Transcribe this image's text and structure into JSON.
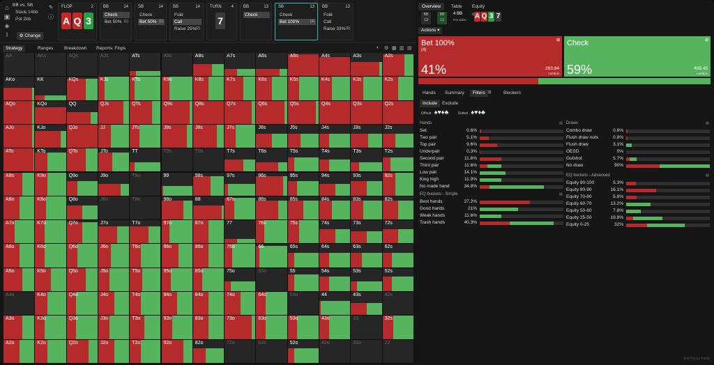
{
  "colors": {
    "bet": "#b52a2a",
    "check": "#56b45f",
    "empty": "#262626",
    "card_red": "#c62828",
    "card_green": "#2e9e44",
    "card_dark": "#3a3a3a"
  },
  "game": {
    "title": "BB vs. SB",
    "stack": "Stack 14bb",
    "pot": "Pot 2bb",
    "change": "Change"
  },
  "streets": [
    {
      "label": "FLOP",
      "num": "2"
    },
    {
      "label": "BB",
      "num": "14",
      "actions": [
        {
          "t": "Check",
          "c": "",
          "sel": true
        },
        {
          "t": "Bet 50%",
          "c": "(1)",
          "sel": false
        }
      ]
    },
    {
      "label": "SB",
      "num": "14",
      "actions": [
        {
          "t": "Check",
          "c": "",
          "sel": false
        },
        {
          "t": "Bet 50%",
          "c": "(1)",
          "sel": true
        }
      ]
    },
    {
      "label": "BB",
      "num": "14",
      "actions": [
        {
          "t": "Fold",
          "c": "",
          "sel": false
        },
        {
          "t": "Call",
          "c": "",
          "sel": true
        },
        {
          "t": "Raise 25%",
          "c": "(2)",
          "sel": false
        }
      ]
    },
    {
      "label": "TURN",
      "num": "4"
    },
    {
      "label": "BB",
      "num": "13",
      "actions": [
        {
          "t": "Check",
          "c": "",
          "sel": true
        }
      ]
    },
    {
      "label": "SB",
      "num": "13",
      "actions": [
        {
          "t": "Check",
          "c": "",
          "sel": false
        },
        {
          "t": "Bet 100%",
          "c": "(4)",
          "sel": true
        }
      ]
    },
    {
      "label": "BB",
      "num": "13",
      "actions": [
        {
          "t": "Fold",
          "c": "",
          "sel": false
        },
        {
          "t": "Call",
          "c": "",
          "sel": false
        },
        {
          "t": "Raise 33%",
          "c": "(6)",
          "sel": false
        }
      ]
    }
  ],
  "flop_cards": [
    "A",
    "Q",
    "3"
  ],
  "turn_card": "7",
  "right": {
    "tabs": [
      "Overview",
      "Table",
      "Equity chart"
    ],
    "mini": [
      {
        "t": "BB",
        "v": "13"
      },
      {
        "t": "BB",
        "v": "13"
      }
    ],
    "bb_info": "4 BB",
    "pot_odds": "Pot odds: -",
    "board": [
      "A",
      "Q",
      "3",
      "7"
    ],
    "actions_label": "Actions",
    "bet": {
      "label": "Bet 100%",
      "sub": "(4)",
      "pct": "41%",
      "combos": "283.84",
      "combos_label": "combos"
    },
    "check": {
      "label": "Check",
      "pct": "59%",
      "combos": "408.45",
      "combos_label": "combos"
    },
    "panel_tabs": [
      "Hands",
      "Summary",
      "Filters",
      "Blockers"
    ],
    "include": "Include",
    "exclude": "Exclude",
    "offsuit": "Offsuit",
    "suited": "Suited",
    "hands_title": "Hands",
    "hands": [
      [
        "Set",
        "0.6%",
        0.006,
        1
      ],
      [
        "Two pair",
        "5.1%",
        0.051,
        1
      ],
      [
        "Top pair",
        "9.6%",
        0.096,
        1
      ],
      [
        "Underpair",
        "0.3%",
        0.003,
        1
      ],
      [
        "Second pair",
        "11.6%",
        0.116,
        1
      ],
      [
        "Third pair",
        "11.6%",
        0.116,
        0.35
      ],
      [
        "Low pair",
        "14.1%",
        0.141,
        0
      ],
      [
        "King high",
        "11.9%",
        0.119,
        0
      ],
      [
        "No made hand",
        "34.8%",
        0.348,
        0.15
      ]
    ],
    "eq_title": "EQ buckets - Simple",
    "eq": [
      [
        "Best hands",
        "27.2%",
        0.272,
        1
      ],
      [
        "Good hands",
        "21%",
        0.21,
        0
      ],
      [
        "Weak hands",
        "11.6%",
        0.116,
        0
      ],
      [
        "Trash hands",
        "40.3%",
        0.403,
        0.4
      ]
    ],
    "draws_title": "Draws",
    "draws": [
      [
        "Combo draw",
        "0.6%",
        0.006,
        1
      ],
      [
        "Flush draw nuts",
        "0.8%",
        0.008,
        1
      ],
      [
        "Flush draw",
        "3.1%",
        0.031,
        0
      ],
      [
        "OESD",
        "0%",
        0,
        0
      ],
      [
        "Gutshot",
        "5.7%",
        0.057,
        0.3
      ],
      [
        "No draw",
        "90%",
        0.9,
        0.4
      ]
    ],
    "adv_title": "EQ buckets - Advanced",
    "adv": [
      [
        "Equity 90-100",
        "5.3%",
        0.053,
        1
      ],
      [
        "Equity 80-90",
        "16.1%",
        0.161,
        1
      ],
      [
        "Equity 70-80",
        "5.8%",
        0.058,
        1
      ],
      [
        "Equity 60-70",
        "13.2%",
        0.132,
        0
      ],
      [
        "Equity 50-60",
        "7.8%",
        0.078,
        0
      ],
      [
        "Equity 25-50",
        "19.8%",
        0.198,
        0.2
      ],
      [
        "Equity 0-25",
        "32%",
        0.32,
        0.35
      ]
    ],
    "exit": "Exit Focus mode"
  },
  "strip_tabs": [
    "Strategy",
    "Ranges",
    "Breakdown",
    "Reports: Flops"
  ],
  "grid_labels": [
    [
      "AA",
      "AKs",
      "AQs",
      "AJs",
      "ATs",
      "A9s",
      "A8s",
      "A7s",
      "A6s",
      "A5s",
      "A4s",
      "A3s",
      "A2s"
    ],
    [
      "AKo",
      "KK",
      "KQs",
      "KJs",
      "KTs",
      "K9s",
      "K8s",
      "K7s",
      "K6s",
      "K5s",
      "K4s",
      "K3s",
      "K2s"
    ],
    [
      "AQo",
      "KQo",
      "QQ",
      "QJs",
      "QTs",
      "Q9s",
      "Q8s",
      "Q7s",
      "Q6s",
      "Q5s",
      "Q4s",
      "Q3s",
      "Q2s"
    ],
    [
      "AJo",
      "KJo",
      "QJo",
      "JJ",
      "JTs",
      "J9s",
      "J8s",
      "J7s",
      "J6s",
      "J5s",
      "J4s",
      "J3s",
      "J2s"
    ],
    [
      "ATo",
      "KTo",
      "QTo",
      "JTo",
      "TT",
      "T9s",
      "T8s",
      "T7s",
      "T6s",
      "T5s",
      "T4s",
      "T3s",
      "T2s"
    ],
    [
      "A9o",
      "K9o",
      "Q9o",
      "J9o",
      "T9o",
      "99",
      "98s",
      "97s",
      "96s",
      "95s",
      "94s",
      "93s",
      "92s"
    ],
    [
      "A8o",
      "K8o",
      "Q8o",
      "J8o",
      "T8o",
      "98o",
      "88",
      "87s",
      "86s",
      "85s",
      "84s",
      "83s",
      "82s"
    ],
    [
      "A7o",
      "K7o",
      "Q7o",
      "J7o",
      "T7o",
      "97o",
      "87o",
      "77",
      "76s",
      "75s",
      "74s",
      "73s",
      "72s"
    ],
    [
      "A6o",
      "K6o",
      "Q6o",
      "J6o",
      "T6o",
      "96o",
      "86o",
      "76o",
      "66",
      "65s",
      "64s",
      "63s",
      "62s"
    ],
    [
      "A5o",
      "K5o",
      "Q5o",
      "J5o",
      "T5o",
      "95o",
      "85o",
      "75o",
      "65o",
      "55",
      "54s",
      "53s",
      "52s"
    ],
    [
      "A4o",
      "K4o",
      "Q4o",
      "J4o",
      "T4o",
      "94o",
      "84o",
      "74o",
      "64o",
      "54o",
      "44",
      "43s",
      "42s"
    ],
    [
      "A3o",
      "K3o",
      "Q3o",
      "J3o",
      "T3o",
      "93o",
      "83o",
      "73o",
      "63o",
      "53o",
      "43o",
      "33",
      "32s"
    ],
    [
      "A2o",
      "K2o",
      "Q2o",
      "J2o",
      "T2o",
      "92o",
      "82o",
      "72o",
      "62o",
      "52o",
      "42o",
      "32o",
      "22"
    ]
  ],
  "grid_weights": [
    [
      [
        0,
        0,
        0
      ],
      [
        0,
        0,
        0
      ],
      [
        0,
        0,
        0
      ],
      [
        0,
        0,
        0
      ],
      [
        0.2,
        0.8,
        0.2
      ],
      [
        0,
        0,
        0
      ],
      [
        0.6,
        0.4,
        0.5
      ],
      [
        0.4,
        0.6,
        0.3
      ],
      [
        0.75,
        0.25,
        0.3
      ],
      [
        1,
        0,
        0.9
      ],
      [
        1,
        0,
        0.8
      ],
      [
        0.9,
        0.1,
        0.6
      ],
      [
        0.7,
        0.3,
        0.9
      ]
    ],
    [
      [
        0.9,
        0.1,
        0.5
      ],
      [
        0.3,
        0.7,
        0.2
      ],
      [
        0.6,
        0.4,
        0.9
      ],
      [
        0.2,
        0.8,
        1
      ],
      [
        0.15,
        0.85,
        1
      ],
      [
        0.25,
        0.75,
        1
      ],
      [
        0.5,
        0.5,
        1
      ],
      [
        0.6,
        0.4,
        1
      ],
      [
        0.5,
        0.5,
        1
      ],
      [
        0.35,
        0.65,
        1
      ],
      [
        0.4,
        0.6,
        1
      ],
      [
        0.4,
        0.6,
        1
      ],
      [
        0.5,
        0.5,
        1
      ]
    ],
    [
      [
        0.9,
        0.1,
        1
      ],
      [
        1,
        0,
        0.7
      ],
      [
        0.75,
        0.25,
        0.5
      ],
      [
        0.8,
        0.2,
        1
      ],
      [
        0.7,
        0.3,
        1
      ],
      [
        0.9,
        0.1,
        1
      ],
      [
        1,
        0,
        1
      ],
      [
        0.85,
        0.15,
        1
      ],
      [
        0.9,
        0.1,
        1
      ],
      [
        0.9,
        0.1,
        1
      ],
      [
        1,
        0,
        1
      ],
      [
        1,
        0,
        1
      ],
      [
        1,
        0,
        1
      ]
    ],
    [
      [
        0.9,
        0.1,
        1
      ],
      [
        0.8,
        0.2,
        0.7
      ],
      [
        1,
        0,
        1
      ],
      [
        0.4,
        0.6,
        1
      ],
      [
        0.3,
        0.7,
        1
      ],
      [
        0.8,
        0.2,
        1
      ],
      [
        0.75,
        0.25,
        1
      ],
      [
        0.35,
        0.65,
        1
      ],
      [
        0.5,
        0.5,
        0.6
      ],
      [
        0.4,
        0.6,
        0.6
      ],
      [
        0.3,
        0.7,
        0.6
      ],
      [
        0.55,
        0.45,
        0.6
      ],
      [
        0.4,
        0.6,
        0.6
      ]
    ],
    [
      [
        0.95,
        0.05,
        1
      ],
      [
        0.4,
        0.6,
        0.8
      ],
      [
        0.6,
        0.4,
        1
      ],
      [
        0.45,
        0.55,
        0.8
      ],
      [
        0.15,
        0.85,
        0.4
      ],
      [
        0,
        0,
        0
      ],
      [
        0,
        0,
        0
      ],
      [
        0.6,
        0.4,
        0.5
      ],
      [
        0.7,
        0.3,
        0.4
      ],
      [
        0.2,
        0.8,
        0.6
      ],
      [
        0.3,
        0.7,
        0.5
      ],
      [
        0.25,
        0.75,
        0.4
      ],
      [
        0.25,
        0.75,
        0.6
      ]
    ],
    [
      [
        0.6,
        0.4,
        1
      ],
      [
        0.4,
        0.6,
        1
      ],
      [
        0.35,
        0.65,
        0.6
      ],
      [
        0.7,
        0.3,
        0.5
      ],
      [
        0,
        0,
        0
      ],
      [
        0.05,
        0.95,
        0.4
      ],
      [
        0.55,
        0.45,
        0.8
      ],
      [
        0.1,
        0.9,
        0.5
      ],
      [
        0.85,
        0.15,
        0.8
      ],
      [
        0.3,
        0.7,
        0.6
      ],
      [
        0.5,
        0.5,
        0.5
      ],
      [
        0.5,
        0.5,
        0.6
      ],
      [
        0.4,
        0.6,
        1
      ]
    ],
    [
      [
        0.5,
        0.5,
        1
      ],
      [
        0.35,
        0.65,
        1
      ],
      [
        0.5,
        0.5,
        0.6
      ],
      [
        0,
        0,
        0
      ],
      [
        0,
        0,
        0
      ],
      [
        0.7,
        0.3,
        0.8
      ],
      [
        0.9,
        0.1,
        0.6
      ],
      [
        0.3,
        0.7,
        0.9
      ],
      [
        0.7,
        0.3,
        0.8
      ],
      [
        0.5,
        0.5,
        0.8
      ],
      [
        0.4,
        0.6,
        0.8
      ],
      [
        0.4,
        0.6,
        0.8
      ],
      [
        0.5,
        0.5,
        0.8
      ]
    ],
    [
      [
        0.35,
        0.65,
        1
      ],
      [
        0.3,
        0.7,
        1
      ],
      [
        0.5,
        0.5,
        0.9
      ],
      [
        0.6,
        0.4,
        0.7
      ],
      [
        0.6,
        0.4,
        0.7
      ],
      [
        0.25,
        0.75,
        1
      ],
      [
        0.5,
        0.5,
        1
      ],
      [
        0.4,
        0.6,
        0.2
      ],
      [
        0.25,
        0.75,
        1
      ],
      [
        0.35,
        0.65,
        1
      ],
      [
        0.5,
        0.5,
        0.6
      ],
      [
        0.5,
        0.5,
        0.5
      ],
      [
        0.5,
        0.5,
        0.6
      ]
    ],
    [
      [
        0.5,
        0.5,
        1
      ],
      [
        0.3,
        0.7,
        1
      ],
      [
        0.35,
        0.65,
        1
      ],
      [
        0.4,
        0.6,
        1
      ],
      [
        0.35,
        0.65,
        1
      ],
      [
        0.55,
        0.45,
        1
      ],
      [
        0.5,
        0.5,
        1
      ],
      [
        0.25,
        0.75,
        1
      ],
      [
        0.1,
        0.9,
        0.9
      ],
      [
        0.2,
        0.8,
        0.6
      ],
      [
        0.3,
        0.7,
        0.6
      ],
      [
        0.35,
        0.65,
        0.6
      ],
      [
        0.3,
        0.7,
        0.6
      ]
    ],
    [
      [
        0.6,
        0.4,
        1
      ],
      [
        0.5,
        0.5,
        1
      ],
      [
        0.6,
        0.4,
        1
      ],
      [
        0.35,
        0.65,
        1
      ],
      [
        0.4,
        0.6,
        1
      ],
      [
        0.3,
        0.7,
        1
      ],
      [
        0.3,
        0.7,
        1
      ],
      [
        0.2,
        0.8,
        0.4
      ],
      [
        0,
        0,
        0
      ],
      [
        0.2,
        0.8,
        0.7
      ],
      [
        0.3,
        0.7,
        0.6
      ],
      [
        0.2,
        0.8,
        0.4
      ],
      [
        0.3,
        0.7,
        0.6
      ]
    ],
    [
      [
        0,
        0,
        0
      ],
      [
        0.4,
        0.6,
        1
      ],
      [
        0.3,
        0.7,
        1
      ],
      [
        0.5,
        0.5,
        1
      ],
      [
        0.35,
        0.65,
        1
      ],
      [
        0.5,
        0.5,
        1
      ],
      [
        0.5,
        0.5,
        1
      ],
      [
        0.5,
        0.5,
        1
      ],
      [
        0.3,
        0.7,
        1
      ],
      [
        0,
        0,
        0
      ],
      [
        0.05,
        0.95,
        0.6
      ],
      [
        0.5,
        0.5,
        0.5
      ],
      [
        0,
        0,
        0
      ]
    ],
    [
      [
        0.6,
        0.4,
        1
      ],
      [
        0.3,
        0.7,
        1
      ],
      [
        0.3,
        0.7,
        1
      ],
      [
        0.35,
        0.65,
        1
      ],
      [
        0.45,
        0.55,
        1
      ],
      [
        0.35,
        0.65,
        1
      ],
      [
        0.5,
        0.5,
        1
      ],
      [
        0.85,
        0.15,
        1
      ],
      [
        0.3,
        0.7,
        1
      ],
      [
        0.3,
        0.7,
        1
      ],
      [
        0.3,
        0.7,
        1
      ],
      [
        0,
        0,
        0
      ],
      [
        0.35,
        0.65,
        1
      ]
    ],
    [
      [
        0.5,
        0.5,
        1
      ],
      [
        0.4,
        0.6,
        1
      ],
      [
        0.7,
        0.3,
        1
      ],
      [
        0.5,
        0.5,
        1
      ],
      [
        0.35,
        0.65,
        1
      ],
      [
        0.7,
        0.3,
        1
      ],
      [
        0.4,
        0.6,
        0.6
      ],
      [
        0,
        0,
        0
      ],
      [
        0,
        0,
        0
      ],
      [
        0.2,
        0.8,
        0.6
      ],
      [
        0,
        0,
        0
      ],
      [
        0,
        0,
        0
      ],
      [
        0,
        0,
        0
      ]
    ]
  ]
}
